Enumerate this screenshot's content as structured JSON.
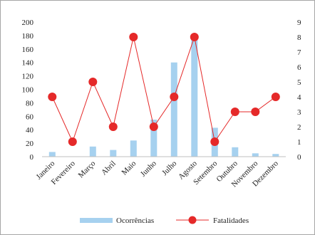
{
  "chart_data": {
    "type": "bar+line",
    "title": "",
    "categories": [
      "Janeiro",
      "Fevereiro",
      "Março",
      "Abril",
      "Maio",
      "Junho",
      "Julho",
      "Agosto",
      "Setembro",
      "Outubro",
      "Novembro",
      "Dezembro"
    ],
    "series": [
      {
        "name": "Ocorrências",
        "type": "bar",
        "axis": "left",
        "color": "#a6d1ef",
        "values": [
          7,
          0,
          15,
          10,
          24,
          55,
          140,
          178,
          43,
          14,
          5,
          4
        ]
      },
      {
        "name": "Fatalidades",
        "type": "line",
        "axis": "right",
        "color": "#e52929",
        "values": [
          4,
          1,
          5,
          2,
          8,
          2,
          4,
          8,
          1,
          3,
          3,
          4
        ]
      }
    ],
    "y_left": {
      "min": 0,
      "max": 200,
      "step": 20,
      "ticks": [
        "0",
        "20",
        "40",
        "60",
        "80",
        "100",
        "120",
        "140",
        "160",
        "180",
        "200"
      ]
    },
    "y_right": {
      "min": 0,
      "max": 9,
      "step": 1,
      "ticks": [
        "0",
        "1",
        "2",
        "3",
        "4",
        "5",
        "6",
        "7",
        "8",
        "9"
      ]
    },
    "grid": false,
    "legend": "bottom"
  }
}
